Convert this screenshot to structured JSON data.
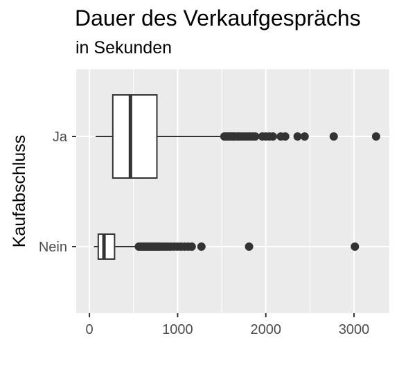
{
  "chart_data": {
    "type": "boxplot",
    "orientation": "horizontal",
    "title": "Dauer des Verkaufgesprächs",
    "subtitle": "in Sekunden",
    "xlabel": "",
    "ylabel": "Kaufabschluss",
    "xlim": [
      -150,
      3400
    ],
    "x_ticks": [
      0,
      1000,
      2000,
      3000
    ],
    "x_tick_labels": [
      "0",
      "1000",
      "2000",
      "3000"
    ],
    "grid": true,
    "legend": "none",
    "colors": {
      "panel_bg": "#ebebeb",
      "grid_major": "#ffffff",
      "box_fill": "#ffffff",
      "box_stroke": "#333333",
      "outlier": "#333333",
      "tick_text": "#4d4d4d"
    },
    "categories": [
      "Ja",
      "Nein"
    ],
    "boxes": [
      {
        "category": "Ja",
        "whisker_low": 70,
        "q1": 265,
        "median": 465,
        "q3": 765,
        "whisker_high": 1500,
        "outliers": [
          1530,
          1550,
          1570,
          1590,
          1610,
          1630,
          1650,
          1680,
          1700,
          1730,
          1760,
          1790,
          1820,
          1850,
          1880,
          1960,
          2000,
          2040,
          2080,
          2170,
          2220,
          2360,
          2440,
          2770,
          3250
        ]
      },
      {
        "category": "Nein",
        "whisker_low": 50,
        "q1": 100,
        "median": 165,
        "q3": 285,
        "whisker_high": 520,
        "outliers": [
          560,
          580,
          600,
          620,
          640,
          660,
          680,
          700,
          720,
          740,
          760,
          780,
          800,
          830,
          860,
          890,
          920,
          960,
          1000,
          1040,
          1080,
          1120,
          1160,
          1270,
          1810,
          3010
        ]
      }
    ]
  }
}
